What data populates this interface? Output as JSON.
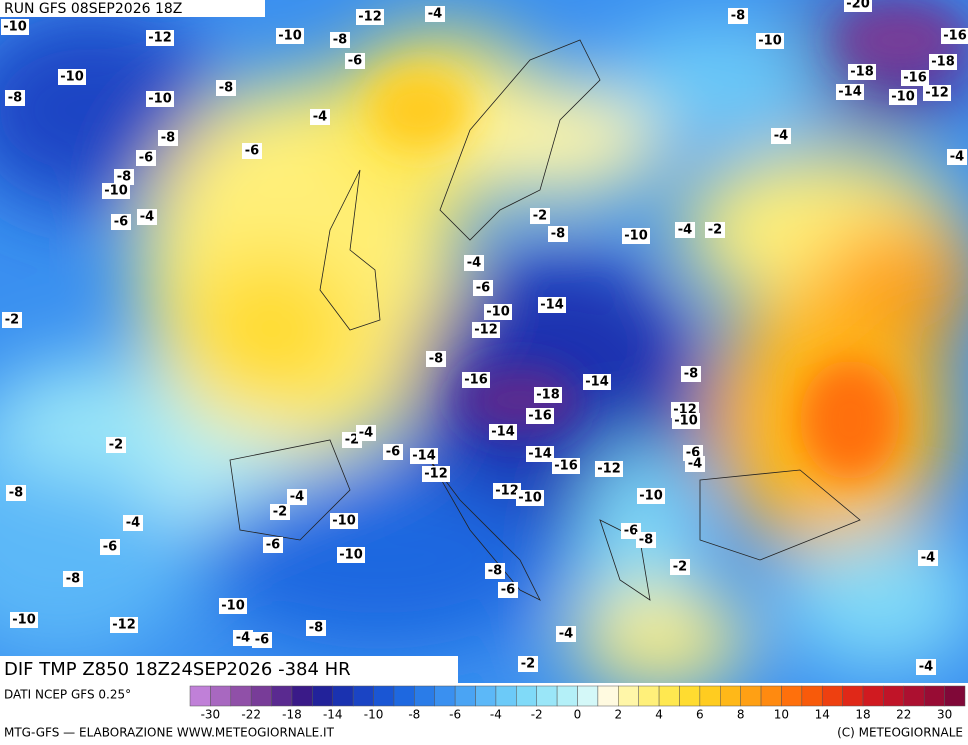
{
  "header": {
    "run": "RUN GFS 08SEP2026 18Z",
    "field": "DIF TMP Z850 18Z24SEP2026 -384 HR"
  },
  "footer": {
    "source": "DATI NCEP GFS 0.25°",
    "credit": "MTG-GFS — ELABORAZIONE WWW.METEOGIORNALE.IT",
    "copyright": "(C) METEOGIORNALE"
  },
  "contour_labels": [
    -12,
    -4,
    -8,
    -20,
    -16,
    -10,
    -12,
    -10,
    -8,
    -6,
    -10,
    -18,
    -10,
    -8,
    -18,
    -16,
    -14,
    -10,
    -12,
    -8,
    -10,
    -4,
    -8,
    -6,
    -6,
    -4,
    -4,
    -8,
    -10,
    -6,
    -4,
    -2,
    -8,
    -10,
    -4,
    -2,
    -4,
    -6,
    -2,
    -10,
    -14,
    -12,
    -8,
    -16,
    -14,
    -8,
    -18,
    -16,
    -12,
    -10,
    -14,
    -2,
    -2,
    -4,
    -6,
    -14,
    -14,
    -16,
    -12,
    -6,
    -4,
    -12,
    -8,
    -12,
    -10,
    -10,
    -4,
    -2,
    -4,
    -10,
    -6,
    -8,
    -6,
    -6,
    -10,
    -2,
    -4,
    -8,
    -8,
    -6,
    -10,
    -10,
    -12,
    -8,
    -4,
    -6,
    -4,
    -2,
    -4
  ],
  "colorbar": {
    "colors": [
      "#c080d8",
      "#a868c0",
      "#9050a8",
      "#783c98",
      "#5a2a90",
      "#3a1a88",
      "#22229a",
      "#1a32b0",
      "#1a44c4",
      "#1a56d4",
      "#1e68e0",
      "#2a7ce8",
      "#3a90f0",
      "#4aa4f4",
      "#5cb8f8",
      "#6ccaf8",
      "#80daf8",
      "#9ae6f8",
      "#b4f0f8",
      "#d4f8f8",
      "#fffae0",
      "#fff6a8",
      "#fff07a",
      "#ffe850",
      "#ffdc30",
      "#ffcc20",
      "#ffb818",
      "#ffa014",
      "#ff8a10",
      "#ff700c",
      "#f85a0a",
      "#ee4010",
      "#e02818",
      "#d01a20",
      "#c01428",
      "#ac1030",
      "#980c34",
      "#800838"
    ],
    "labels": [
      -30,
      -22,
      -18,
      -14,
      -10,
      -8,
      -6,
      -4,
      -2,
      0,
      2,
      4,
      6,
      8,
      10,
      14,
      18,
      22,
      30
    ]
  }
}
